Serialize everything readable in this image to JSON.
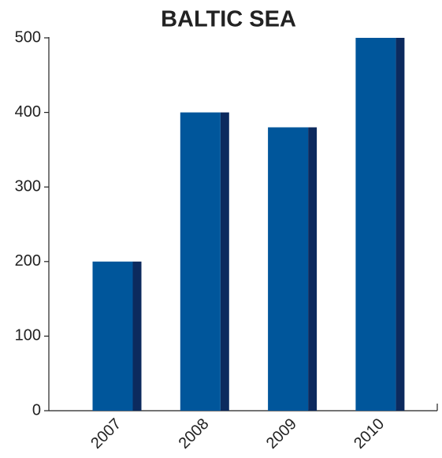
{
  "chart_data": {
    "type": "bar",
    "title": "BALTIC SEA",
    "categories": [
      "2007",
      "2008",
      "2009",
      "2010"
    ],
    "values": [
      200,
      400,
      380,
      500
    ],
    "color": "#00569b",
    "side_color": "#0c2a5e",
    "ylim": [
      0,
      500
    ],
    "yticks": [
      0,
      100,
      200,
      300,
      400,
      500
    ],
    "grid": false
  }
}
